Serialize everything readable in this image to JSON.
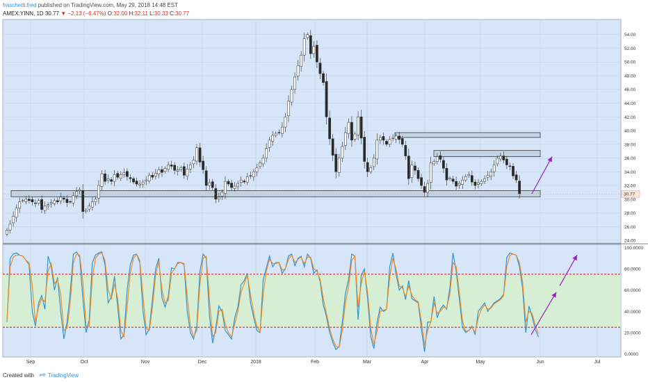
{
  "header": {
    "author": "fraschetti.fred",
    "published": "published on TradingView.com, May 29, 2018 14:48 EST",
    "symbol": "AMEX:YINN, 1D",
    "last": "30.77",
    "arrow": "▼",
    "change": "−2.13 (−6.47%)",
    "o_label": "O:",
    "o_value": "32.00",
    "h_label": "H:",
    "h_value": "32.11",
    "l_label": "L:",
    "l_value": "30.33",
    "c_label": "C:",
    "c_value": "30.77"
  },
  "footer": {
    "created_with": "Created with",
    "brand": "TradingView"
  },
  "colors": {
    "background": "#d6e6f8",
    "pane_border": "#9aa3ad",
    "zone_fill": "#c3d3e3",
    "zone_stroke": "#3b3b3b",
    "band_fill": "#d6eecc",
    "band_line": "#e02020",
    "stoch_k": "#2f93d4",
    "stoch_d": "#f08a24",
    "arrow": "#9b1fc4",
    "dotted_price": "#f0a070",
    "last_tag": "#f7e8de"
  },
  "chart_data": [
    {
      "type": "candlestick",
      "title": "",
      "y_ticks": [
        "24.00",
        "26.00",
        "28.00",
        "30.00",
        "32.00",
        "34.00",
        "36.00",
        "38.00",
        "40.00",
        "42.00",
        "44.00",
        "46.00",
        "48.00",
        "50.00",
        "52.00",
        "54.00"
      ],
      "ylim": [
        23.6,
        56.2
      ],
      "last_price_label": "30.77",
      "x_ticks": [
        "Sep",
        "Oct",
        "Nov",
        "Dec",
        "2018",
        "Feb",
        "Mar",
        "Apr",
        "May",
        "Jun",
        "Jul"
      ],
      "grid": true,
      "closes": [
        25.5,
        26.4,
        27.5,
        28.7,
        29.6,
        29.8,
        30.0,
        29.8,
        29.6,
        29.4,
        29.8,
        28.5,
        29.0,
        29.2,
        29.5,
        29.8,
        29.6,
        30.3,
        30.0,
        29.5,
        29.6,
        30.5,
        31.1,
        31.4,
        28.2,
        28.4,
        29.0,
        29.6,
        30.0,
        32.0,
        33.7,
        32.6,
        33.0,
        32.6,
        33.6,
        33.2,
        33.6,
        33.9,
        33.3,
        33.0,
        32.5,
        32.2,
        32.2,
        32.5,
        32.8,
        33.5,
        33.2,
        33.8,
        34.3,
        33.9,
        34.5,
        35.0,
        34.8,
        34.2,
        34.3,
        34.6,
        33.5,
        34.4,
        35.0,
        35.7,
        37.5,
        35.4,
        34.3,
        32.0,
        32.4,
        31.7,
        30.0,
        30.3,
        31.0,
        32.6,
        32.2,
        31.7,
        31.9,
        32.3,
        32.8,
        32.5,
        33.3,
        33.4,
        34.0,
        34.6,
        35.3,
        36.0,
        37.4,
        38.6,
        39.3,
        39.6,
        39.7,
        40.5,
        42.0,
        44.3,
        46.0,
        47.8,
        49.5,
        51.0,
        53.4,
        54.0,
        51.2,
        52.3,
        50.0,
        48.3,
        47.0,
        42.0,
        38.8,
        36.4,
        34.0,
        36.0,
        37.7,
        39.7,
        41.2,
        38.6,
        39.5,
        42.0,
        38.9,
        35.5,
        34.0,
        34.6,
        36.0,
        38.6,
        39.0,
        38.6,
        38.0,
        38.7,
        38.9,
        39.2,
        38.7,
        38.0,
        36.3,
        33.0,
        35.0,
        34.2,
        33.0,
        32.0,
        31.0,
        32.3,
        35.3,
        35.5,
        36.2,
        35.8,
        34.5,
        32.8,
        33.1,
        32.6,
        31.9,
        32.3,
        32.8,
        33.3,
        33.6,
        32.5,
        32.0,
        32.4,
        32.6,
        33.0,
        33.5,
        34.0,
        35.0,
        36.0,
        36.3,
        35.7,
        35.0,
        34.8,
        33.4,
        32.8,
        30.77
      ],
      "stoch_ylim": [
        -3,
        103
      ],
      "stoch_ticks": [
        "0.0000",
        "20.0000",
        "40.0000",
        "60.0000",
        "80.0000",
        "100.0000"
      ],
      "stoch_band": [
        25,
        75
      ],
      "stoch_k": [
        30,
        90,
        94,
        95,
        93,
        92,
        88,
        84,
        40,
        26,
        48,
        55,
        42,
        92,
        82,
        60,
        72,
        40,
        14,
        30,
        58,
        94,
        96,
        91,
        52,
        20,
        32,
        86,
        93,
        95,
        96,
        84,
        48,
        54,
        73,
        44,
        14,
        18,
        60,
        84,
        93,
        94,
        86,
        40,
        18,
        24,
        52,
        80,
        90,
        53,
        44,
        54,
        81,
        80,
        86,
        86,
        84,
        40,
        20,
        14,
        26,
        78,
        94,
        90,
        36,
        10,
        24,
        45,
        40,
        22,
        18,
        14,
        34,
        44,
        65,
        69,
        76,
        48,
        34,
        22,
        20,
        70,
        81,
        92,
        82,
        86,
        86,
        76,
        80,
        92,
        94,
        83,
        90,
        92,
        82,
        94,
        90,
        76,
        79,
        68,
        46,
        35,
        20,
        11,
        4,
        7,
        30,
        57,
        70,
        94,
        92,
        32,
        74,
        80,
        52,
        16,
        5,
        30,
        44,
        40,
        42,
        82,
        95,
        75,
        60,
        64,
        51,
        69,
        52,
        50,
        48,
        24,
        2,
        30,
        30,
        54,
        34,
        42,
        46,
        42,
        62,
        95,
        78,
        52,
        25,
        20,
        22,
        26,
        18,
        40,
        44,
        48,
        40,
        44,
        48,
        50,
        52,
        56,
        91,
        95,
        94,
        93,
        82,
        62,
        20,
        45,
        35,
        23,
        16
      ],
      "stoch_d": [
        31,
        82,
        91,
        93,
        93,
        92,
        88,
        86,
        64,
        30,
        44,
        52,
        49,
        78,
        85,
        66,
        70,
        56,
        22,
        24,
        48,
        86,
        94,
        93,
        68,
        26,
        26,
        72,
        90,
        94,
        95,
        88,
        60,
        52,
        66,
        52,
        22,
        16,
        44,
        76,
        90,
        94,
        88,
        54,
        24,
        22,
        44,
        74,
        87,
        60,
        48,
        50,
        76,
        80,
        85,
        86,
        85,
        54,
        26,
        16,
        22,
        66,
        90,
        92,
        52,
        16,
        20,
        40,
        42,
        28,
        20,
        16,
        28,
        40,
        58,
        66,
        74,
        56,
        38,
        26,
        21,
        56,
        78,
        89,
        85,
        85,
        86,
        79,
        80,
        89,
        93,
        86,
        89,
        91,
        85,
        91,
        91,
        80,
        78,
        70,
        52,
        38,
        24,
        14,
        7,
        6,
        22,
        48,
        64,
        88,
        92,
        44,
        66,
        78,
        58,
        24,
        9,
        22,
        40,
        41,
        42,
        72,
        90,
        80,
        64,
        62,
        54,
        64,
        55,
        51,
        49,
        31,
        8,
        22,
        30,
        48,
        38,
        40,
        44,
        43,
        56,
        86,
        82,
        58,
        31,
        21,
        22,
        25,
        20,
        34,
        42,
        46,
        42,
        43,
        47,
        49,
        51,
        55,
        82,
        93,
        94,
        93,
        86,
        68,
        30,
        40,
        38,
        27,
        19
      ]
    }
  ]
}
